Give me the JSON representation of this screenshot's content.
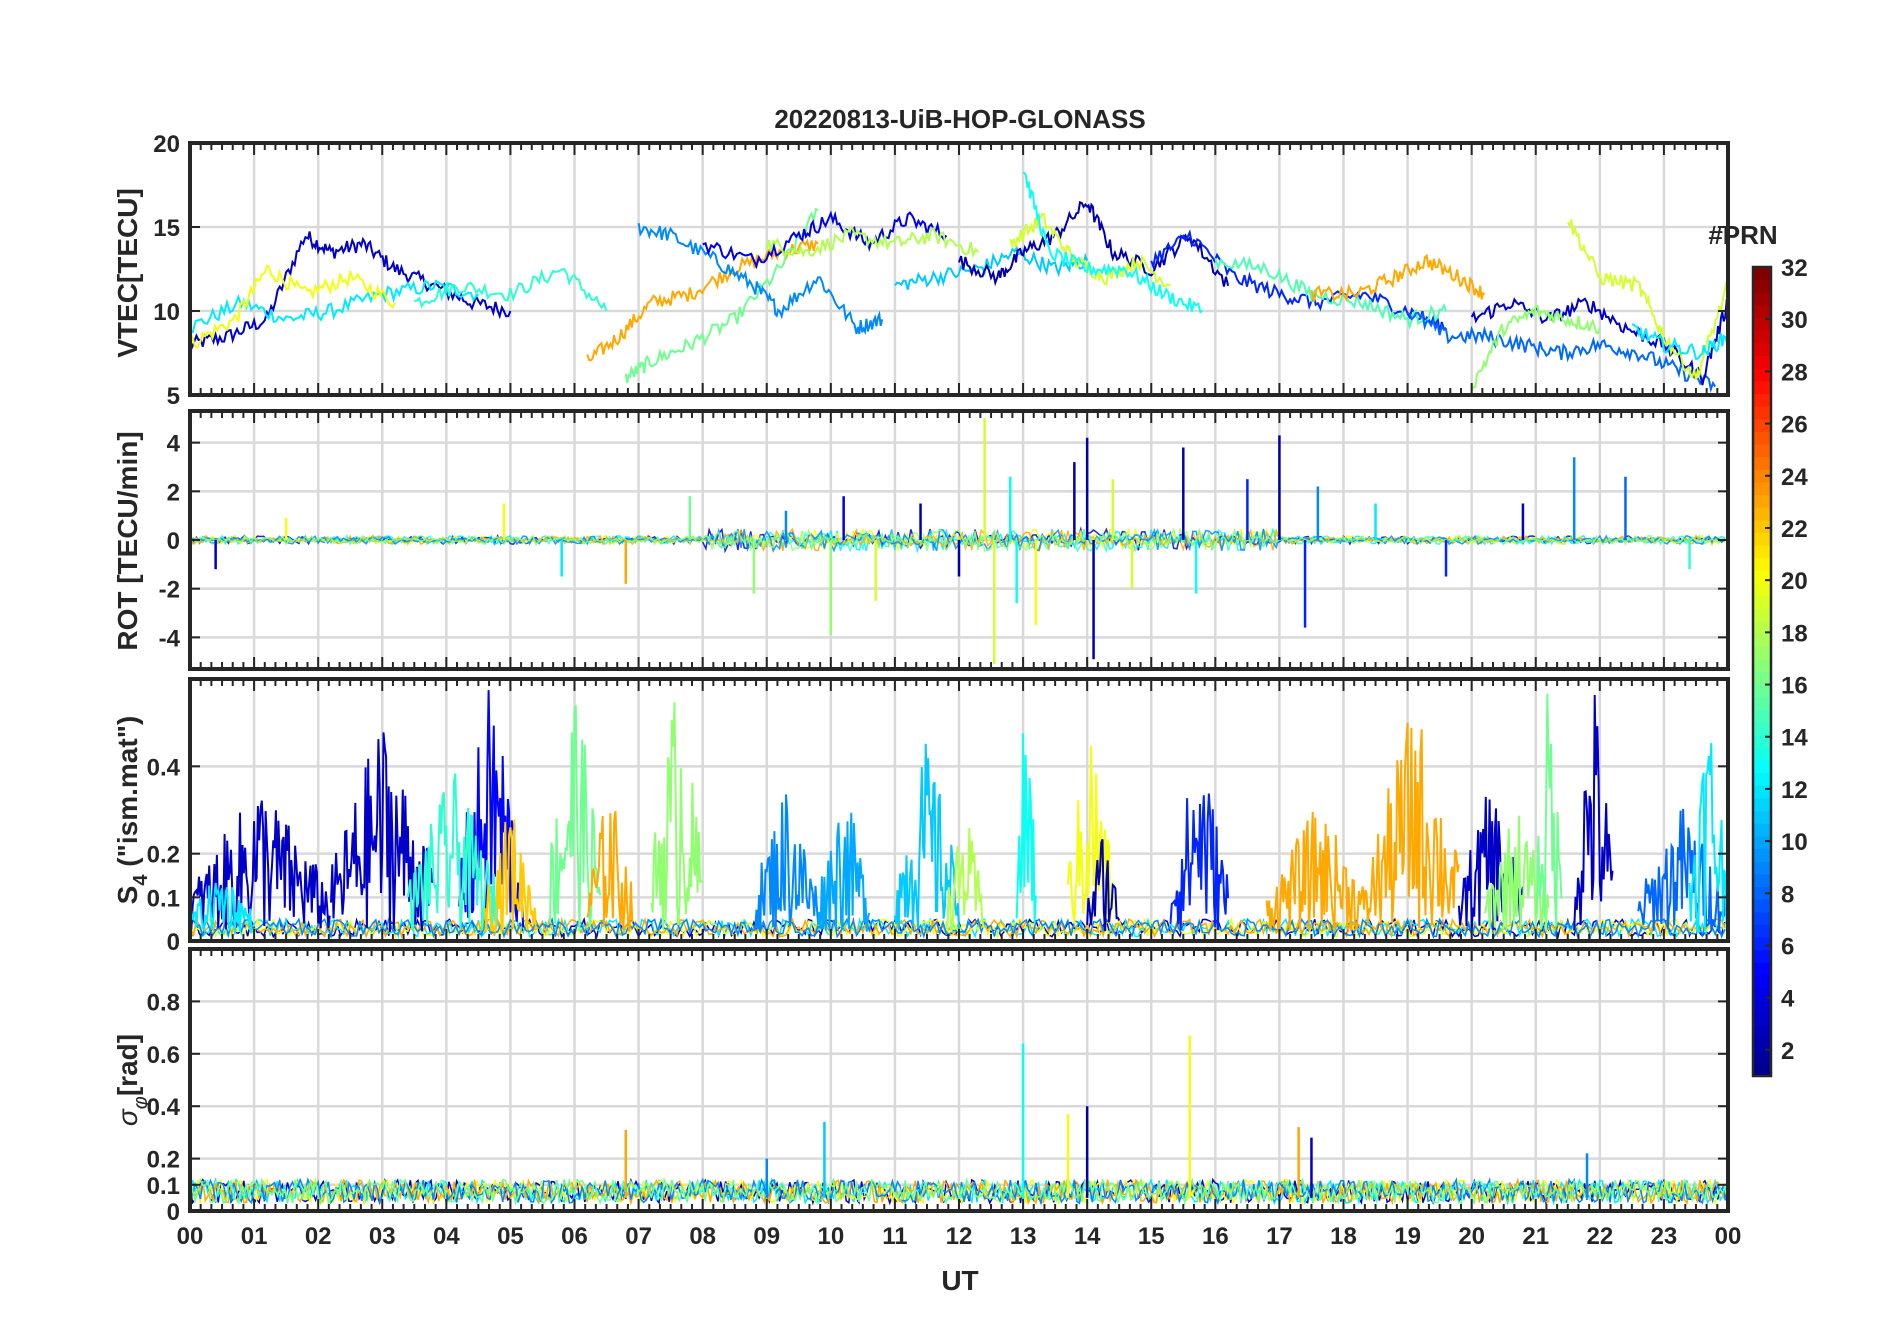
{
  "title": "20220813-UiB-HOP-GLONASS",
  "xlabel": "UT",
  "x_ticks": [
    "00",
    "01",
    "02",
    "03",
    "04",
    "05",
    "06",
    "07",
    "08",
    "09",
    "10",
    "11",
    "12",
    "13",
    "14",
    "15",
    "16",
    "17",
    "18",
    "19",
    "20",
    "21",
    "22",
    "23",
    "00"
  ],
  "colorbar": {
    "label": "#PRN",
    "ticks": [
      "2",
      "4",
      "6",
      "8",
      "10",
      "12",
      "14",
      "16",
      "18",
      "20",
      "22",
      "24",
      "26",
      "28",
      "30",
      "32"
    ],
    "range": [
      1,
      32
    ],
    "colormap": "jet",
    "colors": [
      "#00008f",
      "#0000ff",
      "#0080ff",
      "#00ffff",
      "#80ff80",
      "#ffff00",
      "#ff8000",
      "#ff0000",
      "#800000"
    ]
  },
  "chart_data": [
    {
      "type": "line",
      "ylabel": "VTEC[TECU]",
      "xlim": [
        0,
        24
      ],
      "ylim": [
        5,
        20
      ],
      "y_ticks": [
        "5",
        "10",
        "15",
        "20"
      ],
      "y_tick_values": [
        5,
        10,
        15,
        20
      ],
      "grid": true,
      "series": [
        {
          "prn": 3,
          "x": [
            0,
            0.6,
            1.2,
            1.8,
            2.2,
            2.7,
            3.2,
            3.8,
            4.4,
            5.0
          ],
          "y": [
            8,
            8.5,
            9.5,
            14.5,
            13.5,
            14.0,
            12.5,
            11.5,
            10.5,
            10.0
          ]
        },
        {
          "prn": 12,
          "x": [
            0,
            0.8,
            1.5,
            2.2,
            3.0,
            3.8,
            4.5
          ],
          "y": [
            9,
            10.5,
            9.5,
            10,
            11,
            11.5,
            11
          ]
        },
        {
          "prn": 20,
          "x": [
            0,
            0.7,
            1.2,
            1.8,
            2.5,
            3.2
          ],
          "y": [
            8,
            9.5,
            12.5,
            11,
            12,
            10.5
          ]
        },
        {
          "prn": 14,
          "x": [
            3.5,
            4.2,
            5.0,
            5.8,
            6.5
          ],
          "y": [
            10.5,
            11.5,
            11,
            12.5,
            10
          ]
        },
        {
          "prn": 23,
          "x": [
            6.2,
            6.7,
            7.2,
            7.8,
            8.5,
            9.2,
            9.8
          ],
          "y": [
            7,
            8.5,
            10.5,
            11,
            12.5,
            13.5,
            14
          ]
        },
        {
          "prn": 16,
          "x": [
            6.8,
            7.2,
            7.8,
            8.5,
            9.2,
            9.8
          ],
          "y": [
            6,
            7,
            8,
            9.5,
            12.5,
            16
          ]
        },
        {
          "prn": 9,
          "x": [
            7.0,
            7.5,
            8.2,
            8.8,
            9.2,
            9.8,
            10.4,
            10.8
          ],
          "y": [
            15,
            14.5,
            13,
            11.5,
            10,
            12,
            9,
            9.5
          ]
        },
        {
          "prn": 4,
          "x": [
            8.0,
            8.8,
            9.5,
            10.0,
            10.6,
            11.2,
            11.8
          ],
          "y": [
            14,
            13,
            14.5,
            15.5,
            14,
            15.5,
            14.5
          ]
        },
        {
          "prn": 18,
          "x": [
            9.0,
            9.6,
            10.3,
            11.0,
            11.6,
            12.3
          ],
          "y": [
            14,
            13.5,
            14.5,
            14,
            14.5,
            13.5
          ]
        },
        {
          "prn": 11,
          "x": [
            11.0,
            11.6,
            12.3,
            12.9,
            13.5,
            14.0
          ],
          "y": [
            11.5,
            12,
            12.5,
            13.5,
            12.5,
            13
          ]
        },
        {
          "prn": 2,
          "x": [
            12.0,
            12.6,
            13.0,
            13.5,
            14.0,
            14.4,
            15.0,
            15.6,
            16.2
          ],
          "y": [
            13,
            12,
            13.5,
            14.5,
            16.5,
            13.5,
            12.5,
            14.5,
            11.5
          ]
        },
        {
          "prn": 19,
          "x": [
            12.8,
            13.3,
            13.8,
            14.3,
            14.8,
            15.3
          ],
          "y": [
            14,
            15.5,
            13,
            12,
            13,
            11.5
          ]
        },
        {
          "prn": 13,
          "x": [
            13.0,
            13.4,
            14.0,
            14.6,
            15.2,
            15.8
          ],
          "y": [
            18.5,
            13.5,
            12.5,
            12.5,
            11,
            10
          ]
        },
        {
          "prn": 6,
          "x": [
            15.0,
            15.6,
            16.3,
            17.0,
            17.6,
            18.3,
            19.0,
            19.6
          ],
          "y": [
            13,
            14.5,
            12,
            11,
            10.5,
            11,
            10,
            9
          ]
        },
        {
          "prn": 15,
          "x": [
            16.0,
            16.8,
            17.5,
            18.3,
            19.0,
            19.6
          ],
          "y": [
            13,
            12.5,
            11,
            10.5,
            9.5,
            10
          ]
        },
        {
          "prn": 23,
          "x": [
            17.5,
            18.2,
            18.8,
            19.3,
            19.8,
            20.2
          ],
          "y": [
            11,
            11,
            12,
            13,
            12,
            11
          ]
        },
        {
          "prn": 8,
          "x": [
            19.0,
            19.6,
            20.2,
            20.8,
            21.4,
            22.0,
            22.6,
            23.2,
            23.8
          ],
          "y": [
            10,
            8.5,
            8.5,
            8.0,
            7.5,
            8,
            7.5,
            6.5,
            5.5
          ]
        },
        {
          "prn": 3,
          "x": [
            20.0,
            20.6,
            21.2,
            21.8,
            22.4,
            23.0,
            23.6,
            24.0
          ],
          "y": [
            9.5,
            10.5,
            9.5,
            10.5,
            9,
            8,
            6,
            10.5
          ]
        },
        {
          "prn": 17,
          "x": [
            20.0,
            20.5,
            21.0,
            21.5,
            22.0
          ],
          "y": [
            5.5,
            9,
            10,
            9.5,
            9
          ]
        },
        {
          "prn": 19,
          "x": [
            21.5,
            22.0,
            22.6,
            23.0,
            23.5,
            24.0
          ],
          "y": [
            15.5,
            12,
            11.5,
            8.5,
            6,
            11.5
          ]
        },
        {
          "prn": 12,
          "x": [
            22.5,
            23.0,
            23.6,
            24.0
          ],
          "y": [
            9,
            8,
            7.5,
            8.5
          ]
        }
      ]
    },
    {
      "type": "line",
      "ylabel": "ROT [TECU/min]",
      "xlim": [
        0,
        24
      ],
      "ylim": [
        -5.3,
        5.3
      ],
      "y_ticks": [
        "-4",
        "-2",
        "0",
        "2",
        "4"
      ],
      "y_tick_values": [
        -4,
        -2,
        0,
        2,
        4
      ],
      "grid": true,
      "spikes": [
        {
          "prn": 3,
          "x": 0.4,
          "y": -1.2
        },
        {
          "prn": 20,
          "x": 1.5,
          "y": 0.9
        },
        {
          "prn": 20,
          "x": 4.9,
          "y": 1.5
        },
        {
          "prn": 12,
          "x": 5.8,
          "y": -1.5
        },
        {
          "prn": 23,
          "x": 6.8,
          "y": -1.8
        },
        {
          "prn": 16,
          "x": 7.8,
          "y": 1.8
        },
        {
          "prn": 17,
          "x": 8.8,
          "y": -2.2
        },
        {
          "prn": 9,
          "x": 9.3,
          "y": 1.2
        },
        {
          "prn": 17,
          "x": 10.0,
          "y": -3.9
        },
        {
          "prn": 4,
          "x": 10.2,
          "y": 1.8
        },
        {
          "prn": 19,
          "x": 10.7,
          "y": -2.5
        },
        {
          "prn": 2,
          "x": 11.4,
          "y": 1.5
        },
        {
          "prn": 2,
          "x": 12.0,
          "y": -1.5
        },
        {
          "prn": 19,
          "x": 12.4,
          "y": 5.0
        },
        {
          "prn": 19,
          "x": 12.55,
          "y": -5.1
        },
        {
          "prn": 13,
          "x": 12.8,
          "y": 2.6
        },
        {
          "prn": 13,
          "x": 12.9,
          "y": -2.6
        },
        {
          "prn": 20,
          "x": 13.2,
          "y": -3.5
        },
        {
          "prn": 2,
          "x": 13.8,
          "y": 3.2
        },
        {
          "prn": 2,
          "x": 14.0,
          "y": 4.2
        },
        {
          "prn": 2,
          "x": 14.1,
          "y": -4.9
        },
        {
          "prn": 19,
          "x": 14.4,
          "y": 2.5
        },
        {
          "prn": 19,
          "x": 14.7,
          "y": -2.0
        },
        {
          "prn": 2,
          "x": 15.5,
          "y": 3.8
        },
        {
          "prn": 13,
          "x": 15.7,
          "y": -2.2
        },
        {
          "prn": 6,
          "x": 16.5,
          "y": 2.5
        },
        {
          "prn": 2,
          "x": 17.0,
          "y": 4.3
        },
        {
          "prn": 6,
          "x": 17.4,
          "y": -3.6
        },
        {
          "prn": 9,
          "x": 17.6,
          "y": 2.2
        },
        {
          "prn": 12,
          "x": 18.5,
          "y": 1.5
        },
        {
          "prn": 6,
          "x": 19.6,
          "y": -1.5
        },
        {
          "prn": 3,
          "x": 20.8,
          "y": 1.5
        },
        {
          "prn": 9,
          "x": 21.6,
          "y": 3.4
        },
        {
          "prn": 8,
          "x": 22.4,
          "y": 2.6
        },
        {
          "prn": 14,
          "x": 23.4,
          "y": -1.2
        }
      ]
    },
    {
      "type": "line",
      "ylabel": "S4 (\"ism.mat\")",
      "ylabel_main": "S",
      "ylabel_sub": "4",
      "ylabel_tail": " (\"ism.mat\")",
      "xlim": [
        0,
        24
      ],
      "ylim": [
        0,
        0.6
      ],
      "y_ticks": [
        "0",
        "0.1",
        "0.2",
        "0.4"
      ],
      "y_tick_values": [
        0,
        0.1,
        0.2,
        0.4
      ],
      "grid": true,
      "bursts": [
        {
          "prn": 3,
          "x0": 0.0,
          "x1": 2.2,
          "peak": 0.35
        },
        {
          "prn": 3,
          "x0": 2.2,
          "x1": 3.8,
          "peak": 0.5
        },
        {
          "prn": 5,
          "x0": 4.2,
          "x1": 5.2,
          "peak": 0.6
        },
        {
          "prn": 12,
          "x0": 0.0,
          "x1": 1.0,
          "peak": 0.15
        },
        {
          "prn": 14,
          "x0": 3.4,
          "x1": 4.8,
          "peak": 0.38
        },
        {
          "prn": 22,
          "x0": 4.6,
          "x1": 5.4,
          "peak": 0.3
        },
        {
          "prn": 16,
          "x0": 5.6,
          "x1": 6.4,
          "peak": 0.6
        },
        {
          "prn": 23,
          "x0": 6.2,
          "x1": 6.9,
          "peak": 0.35
        },
        {
          "prn": 17,
          "x0": 7.2,
          "x1": 8.0,
          "peak": 0.6
        },
        {
          "prn": 9,
          "x0": 8.8,
          "x1": 9.8,
          "peak": 0.35
        },
        {
          "prn": 10,
          "x0": 9.8,
          "x1": 10.6,
          "peak": 0.35
        },
        {
          "prn": 11,
          "x0": 11.0,
          "x1": 12.0,
          "peak": 0.45
        },
        {
          "prn": 18,
          "x0": 11.8,
          "x1": 12.4,
          "peak": 0.28
        },
        {
          "prn": 13,
          "x0": 12.9,
          "x1": 13.2,
          "peak": 0.6
        },
        {
          "prn": 20,
          "x0": 13.7,
          "x1": 14.4,
          "peak": 0.5
        },
        {
          "prn": 2,
          "x0": 14.0,
          "x1": 14.5,
          "peak": 0.25
        },
        {
          "prn": 6,
          "x0": 15.3,
          "x1": 16.2,
          "peak": 0.45
        },
        {
          "prn": 23,
          "x0": 16.8,
          "x1": 18.4,
          "peak": 0.3
        },
        {
          "prn": 23,
          "x0": 18.4,
          "x1": 19.8,
          "peak": 0.55
        },
        {
          "prn": 3,
          "x0": 19.8,
          "x1": 20.8,
          "peak": 0.35
        },
        {
          "prn": 17,
          "x0": 20.2,
          "x1": 21.2,
          "peak": 0.3
        },
        {
          "prn": 16,
          "x0": 21.0,
          "x1": 21.4,
          "peak": 0.6
        },
        {
          "prn": 3,
          "x0": 21.6,
          "x1": 22.2,
          "peak": 0.6
        },
        {
          "prn": 8,
          "x0": 22.6,
          "x1": 24.0,
          "peak": 0.3
        },
        {
          "prn": 12,
          "x0": 23.4,
          "x1": 24.0,
          "peak": 0.55
        }
      ]
    },
    {
      "type": "line",
      "ylabel": "σφ[rad]",
      "ylabel_main": "σ",
      "ylabel_sub": "φ",
      "ylabel_tail": "[rad]",
      "xlim": [
        0,
        24
      ],
      "ylim": [
        0,
        1.0
      ],
      "y_ticks": [
        "0",
        "0.1",
        "0.2",
        "0.4",
        "0.6",
        "0.8"
      ],
      "y_tick_values": [
        0,
        0.1,
        0.2,
        0.4,
        0.6,
        0.8
      ],
      "grid": true,
      "baseline": {
        "from": 0.03,
        "to": 0.12
      },
      "spikes": [
        {
          "prn": 23,
          "x": 6.8,
          "y": 0.31
        },
        {
          "prn": 9,
          "x": 9.0,
          "y": 0.2
        },
        {
          "prn": 11,
          "x": 9.9,
          "y": 0.34
        },
        {
          "prn": 13,
          "x": 13.0,
          "y": 0.64
        },
        {
          "prn": 20,
          "x": 13.7,
          "y": 0.37
        },
        {
          "prn": 2,
          "x": 14.0,
          "y": 0.4
        },
        {
          "prn": 20,
          "x": 15.6,
          "y": 0.67
        },
        {
          "prn": 23,
          "x": 17.3,
          "y": 0.32
        },
        {
          "prn": 3,
          "x": 17.5,
          "y": 0.28
        },
        {
          "prn": 9,
          "x": 21.8,
          "y": 0.22
        }
      ]
    }
  ]
}
